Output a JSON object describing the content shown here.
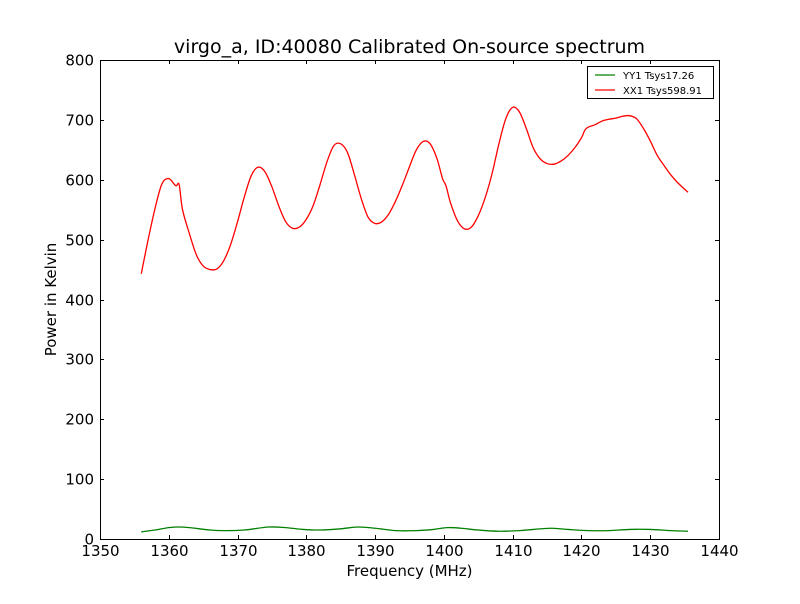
{
  "chart_data": {
    "type": "line",
    "title": "virgo_a, ID:40080 Calibrated On-source spectrum",
    "xlabel": "Frequency (MHz)",
    "ylabel": "Power in Kelvin",
    "xlim": [
      1350,
      1440
    ],
    "ylim": [
      0,
      800
    ],
    "xticks": [
      1350,
      1360,
      1370,
      1380,
      1390,
      1400,
      1410,
      1420,
      1430,
      1440
    ],
    "yticks": [
      0,
      100,
      200,
      300,
      400,
      500,
      600,
      700,
      800
    ],
    "grid": false,
    "legend_position": "top-right",
    "series": [
      {
        "name": "YY1 Tsys17.26",
        "color": "#008000",
        "points": [
          [
            1356,
            12
          ],
          [
            1358,
            15
          ],
          [
            1360,
            19
          ],
          [
            1361.5,
            20
          ],
          [
            1363,
            19
          ],
          [
            1366,
            15
          ],
          [
            1368,
            14
          ],
          [
            1371,
            15
          ],
          [
            1374.5,
            20
          ],
          [
            1377,
            19
          ],
          [
            1379.5,
            16
          ],
          [
            1382,
            15
          ],
          [
            1385,
            17
          ],
          [
            1387.5,
            20
          ],
          [
            1390,
            18
          ],
          [
            1393,
            14
          ],
          [
            1396,
            14
          ],
          [
            1398.5,
            16
          ],
          [
            1400.5,
            19
          ],
          [
            1402.5,
            18
          ],
          [
            1405,
            15
          ],
          [
            1408,
            13
          ],
          [
            1411,
            14
          ],
          [
            1413,
            16
          ],
          [
            1415.5,
            18
          ],
          [
            1418,
            16
          ],
          [
            1421,
            14
          ],
          [
            1424,
            14
          ],
          [
            1427,
            16
          ],
          [
            1430,
            16
          ],
          [
            1433,
            14
          ],
          [
            1435.5,
            13
          ]
        ]
      },
      {
        "name": "XX1 Tsys598.91",
        "color": "#ff0000",
        "points": [
          [
            1356,
            443
          ],
          [
            1357,
            500
          ],
          [
            1358,
            552
          ],
          [
            1359,
            593
          ],
          [
            1360,
            602
          ],
          [
            1361,
            590
          ],
          [
            1361.5,
            592
          ],
          [
            1362,
            550
          ],
          [
            1363,
            510
          ],
          [
            1364,
            475
          ],
          [
            1365,
            456
          ],
          [
            1366,
            450
          ],
          [
            1367,
            451
          ],
          [
            1368,
            465
          ],
          [
            1369,
            492
          ],
          [
            1370,
            530
          ],
          [
            1371,
            572
          ],
          [
            1372,
            607
          ],
          [
            1373,
            621
          ],
          [
            1374,
            613
          ],
          [
            1375,
            588
          ],
          [
            1376,
            556
          ],
          [
            1377,
            530
          ],
          [
            1378,
            519
          ],
          [
            1379,
            521
          ],
          [
            1380,
            534
          ],
          [
            1381,
            557
          ],
          [
            1382,
            592
          ],
          [
            1383,
            630
          ],
          [
            1384,
            657
          ],
          [
            1385,
            660
          ],
          [
            1386,
            645
          ],
          [
            1387,
            608
          ],
          [
            1388,
            568
          ],
          [
            1389,
            537
          ],
          [
            1390,
            527
          ],
          [
            1391,
            530
          ],
          [
            1392,
            543
          ],
          [
            1393,
            565
          ],
          [
            1394,
            592
          ],
          [
            1395,
            622
          ],
          [
            1396,
            650
          ],
          [
            1397,
            664
          ],
          [
            1398,
            660
          ],
          [
            1399,
            635
          ],
          [
            1399.8,
            602
          ],
          [
            1400.3,
            590
          ],
          [
            1401,
            560
          ],
          [
            1402,
            531
          ],
          [
            1403,
            518
          ],
          [
            1404,
            521
          ],
          [
            1405,
            540
          ],
          [
            1406,
            570
          ],
          [
            1407,
            610
          ],
          [
            1408,
            660
          ],
          [
            1409,
            702
          ],
          [
            1410,
            721
          ],
          [
            1411,
            713
          ],
          [
            1412,
            685
          ],
          [
            1413,
            653
          ],
          [
            1414,
            635
          ],
          [
            1415,
            627
          ],
          [
            1416,
            626
          ],
          [
            1417,
            631
          ],
          [
            1418,
            640
          ],
          [
            1419,
            653
          ],
          [
            1420,
            670
          ],
          [
            1420.5,
            683
          ],
          [
            1421,
            688
          ],
          [
            1422,
            692
          ],
          [
            1423,
            698
          ],
          [
            1424,
            701
          ],
          [
            1425,
            703
          ],
          [
            1426,
            706
          ],
          [
            1427,
            707
          ],
          [
            1428,
            702
          ],
          [
            1429,
            686
          ],
          [
            1430,
            665
          ],
          [
            1431,
            641
          ],
          [
            1432,
            624
          ],
          [
            1433,
            608
          ],
          [
            1434,
            595
          ],
          [
            1435.5,
            579
          ]
        ]
      }
    ]
  }
}
